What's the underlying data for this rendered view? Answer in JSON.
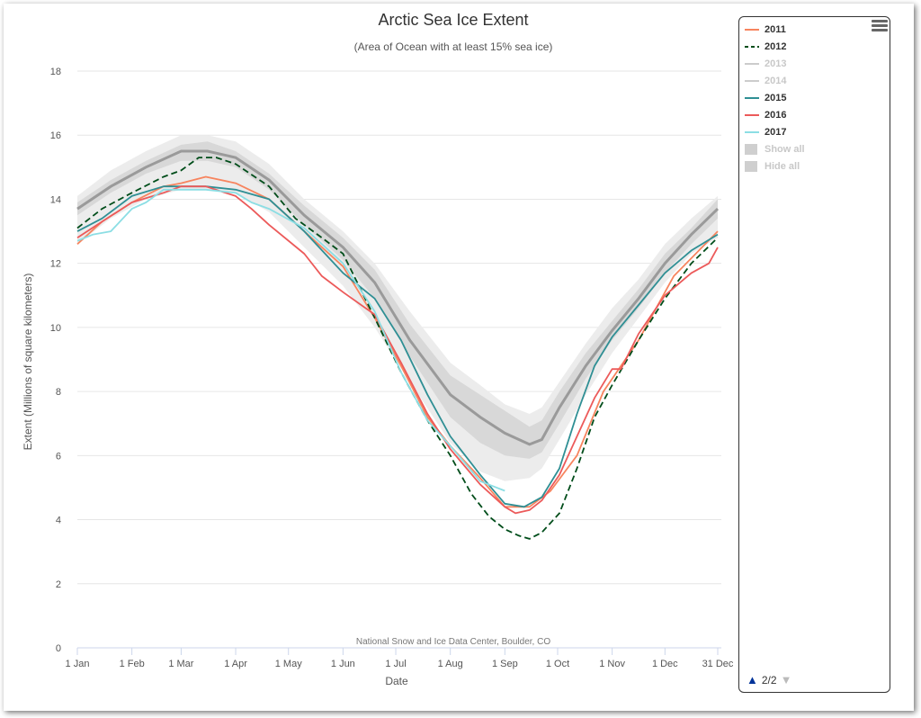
{
  "chart_data": {
    "type": "line",
    "title": "Arctic Sea Ice Extent",
    "subtitle": "(Area of Ocean with at least 15% sea ice)",
    "xlabel": "Date",
    "ylabel": "Extent (Millions of square kilometers)",
    "xlim": [
      1,
      365
    ],
    "ylim": [
      0,
      18
    ],
    "y_ticks": [
      0,
      2,
      4,
      6,
      8,
      10,
      12,
      14,
      16,
      18
    ],
    "x_ticks": [
      {
        "label": "1 Jan",
        "day": 1
      },
      {
        "label": "1 Feb",
        "day": 32
      },
      {
        "label": "1 Mar",
        "day": 60
      },
      {
        "label": "1 Apr",
        "day": 91
      },
      {
        "label": "1 May",
        "day": 121
      },
      {
        "label": "1 Jun",
        "day": 152
      },
      {
        "label": "1 Jul",
        "day": 182
      },
      {
        "label": "1 Aug",
        "day": 213
      },
      {
        "label": "1 Sep",
        "day": 244
      },
      {
        "label": "1 Oct",
        "day": 274
      },
      {
        "label": "1 Nov",
        "day": 305
      },
      {
        "label": "1 Dec",
        "day": 335
      },
      {
        "label": "31 Dec",
        "day": 365
      }
    ],
    "grid": true,
    "legend_position": "right",
    "credit": "National Snow and Ice Data Center, Boulder, CO",
    "climatology": {
      "x": [
        1,
        20,
        40,
        60,
        75,
        91,
        110,
        130,
        152,
        170,
        190,
        213,
        230,
        244,
        258,
        265,
        275,
        290,
        305,
        320,
        335,
        350,
        365
      ],
      "median": [
        13.7,
        14.4,
        15.0,
        15.5,
        15.5,
        15.3,
        14.6,
        13.5,
        12.5,
        11.4,
        9.6,
        7.9,
        7.2,
        6.7,
        6.35,
        6.5,
        7.5,
        8.8,
        9.9,
        10.9,
        12.0,
        12.9,
        13.7
      ],
      "iqr_low": [
        13.5,
        14.2,
        14.8,
        15.2,
        15.2,
        15.0,
        14.3,
        13.2,
        12.1,
        10.9,
        9.1,
        7.2,
        6.4,
        6.0,
        5.9,
        6.1,
        7.0,
        8.4,
        9.6,
        10.6,
        11.7,
        12.6,
        13.4
      ],
      "iqr_high": [
        13.9,
        14.6,
        15.2,
        15.7,
        15.8,
        15.5,
        14.8,
        13.8,
        12.8,
        11.8,
        10.1,
        8.5,
        7.9,
        7.4,
        6.9,
        7.1,
        8.0,
        9.2,
        10.2,
        11.2,
        12.3,
        13.1,
        14.0
      ],
      "range_low": [
        12.6,
        13.4,
        14.0,
        14.3,
        14.3,
        14.2,
        13.6,
        12.5,
        11.3,
        10.0,
        8.3,
        6.4,
        5.5,
        5.2,
        5.3,
        5.6,
        6.5,
        7.9,
        9.2,
        10.3,
        11.4,
        12.3,
        12.8
      ],
      "range_high": [
        14.1,
        14.9,
        15.5,
        16.0,
        16.0,
        15.8,
        15.1,
        14.0,
        13.0,
        12.0,
        10.5,
        8.9,
        8.2,
        7.6,
        7.3,
        7.5,
        8.3,
        9.5,
        10.6,
        11.5,
        12.6,
        13.4,
        14.1
      ]
    },
    "series": [
      {
        "name": "2011",
        "color": "#f7845e",
        "dash": false,
        "visible": true,
        "x": [
          1,
          15,
          32,
          50,
          60,
          74,
          91,
          110,
          130,
          152,
          170,
          185,
          200,
          213,
          230,
          244,
          258,
          270,
          285,
          300,
          320,
          340,
          365
        ],
        "y": [
          12.6,
          13.3,
          13.9,
          14.4,
          14.5,
          14.7,
          14.5,
          14.0,
          13.0,
          11.9,
          10.3,
          8.8,
          7.2,
          6.3,
          5.3,
          4.4,
          4.4,
          4.9,
          6.0,
          8.0,
          9.6,
          11.6,
          13.0
        ]
      },
      {
        "name": "2012",
        "color": "#004d1a",
        "dash": true,
        "visible": true,
        "x": [
          1,
          15,
          32,
          50,
          60,
          70,
          80,
          91,
          110,
          125,
          140,
          152,
          170,
          185,
          200,
          213,
          225,
          235,
          244,
          252,
          258,
          265,
          275,
          285,
          295,
          305,
          320,
          335,
          350,
          365
        ],
        "y": [
          13.1,
          13.7,
          14.2,
          14.7,
          14.9,
          15.3,
          15.3,
          15.1,
          14.4,
          13.4,
          12.8,
          12.3,
          10.3,
          8.6,
          7.1,
          6.0,
          4.8,
          4.1,
          3.7,
          3.5,
          3.4,
          3.6,
          4.2,
          5.6,
          7.2,
          8.2,
          9.6,
          10.9,
          12.0,
          12.8
        ]
      },
      {
        "name": "2013",
        "color": "#cccccc",
        "dash": false,
        "visible": false,
        "x": [],
        "y": []
      },
      {
        "name": "2014",
        "color": "#cccccc",
        "dash": false,
        "visible": false,
        "x": [],
        "y": []
      },
      {
        "name": "2015",
        "color": "#2f8f94",
        "dash": false,
        "visible": true,
        "x": [
          1,
          15,
          32,
          50,
          60,
          74,
          91,
          110,
          130,
          152,
          170,
          185,
          200,
          213,
          230,
          244,
          255,
          265,
          275,
          285,
          295,
          305,
          320,
          335,
          350,
          365
        ],
        "y": [
          13.0,
          13.4,
          14.1,
          14.4,
          14.4,
          14.4,
          14.3,
          14.0,
          13.0,
          11.7,
          10.9,
          9.6,
          7.9,
          6.6,
          5.4,
          4.5,
          4.4,
          4.7,
          5.6,
          7.3,
          8.8,
          9.7,
          10.7,
          11.7,
          12.4,
          12.9
        ]
      },
      {
        "name": "2016",
        "color": "#ec5a5a",
        "dash": false,
        "visible": true,
        "x": [
          1,
          15,
          32,
          50,
          60,
          74,
          91,
          100,
          110,
          130,
          140,
          152,
          170,
          185,
          200,
          213,
          230,
          244,
          250,
          258,
          265,
          275,
          285,
          295,
          305,
          310,
          320,
          335,
          350,
          360,
          365
        ],
        "y": [
          12.8,
          13.3,
          13.9,
          14.2,
          14.4,
          14.4,
          14.1,
          13.7,
          13.2,
          12.3,
          11.6,
          11.1,
          10.4,
          8.9,
          7.3,
          6.2,
          5.1,
          4.4,
          4.2,
          4.3,
          4.6,
          5.4,
          6.6,
          7.8,
          8.7,
          8.7,
          9.8,
          11.0,
          11.7,
          12.0,
          12.5
        ]
      },
      {
        "name": "2017",
        "color": "#8cdee4",
        "dash": false,
        "visible": true,
        "x": [
          1,
          10,
          20,
          32,
          40,
          50,
          60,
          74,
          91,
          100,
          110,
          130,
          152,
          170,
          185,
          200,
          213,
          230,
          244
        ],
        "y": [
          12.7,
          12.9,
          13.0,
          13.7,
          13.9,
          14.3,
          14.3,
          14.3,
          14.2,
          13.9,
          13.7,
          13.1,
          12.0,
          10.5,
          8.6,
          7.1,
          6.3,
          5.2,
          4.9
        ]
      }
    ]
  },
  "legend": {
    "items": [
      "2011",
      "2012",
      "2013",
      "2014",
      "2015",
      "2016",
      "2017"
    ],
    "show_all": "Show all",
    "hide_all": "Hide all",
    "pager": "2/2"
  },
  "menu_icon": "hamburger-menu-icon"
}
